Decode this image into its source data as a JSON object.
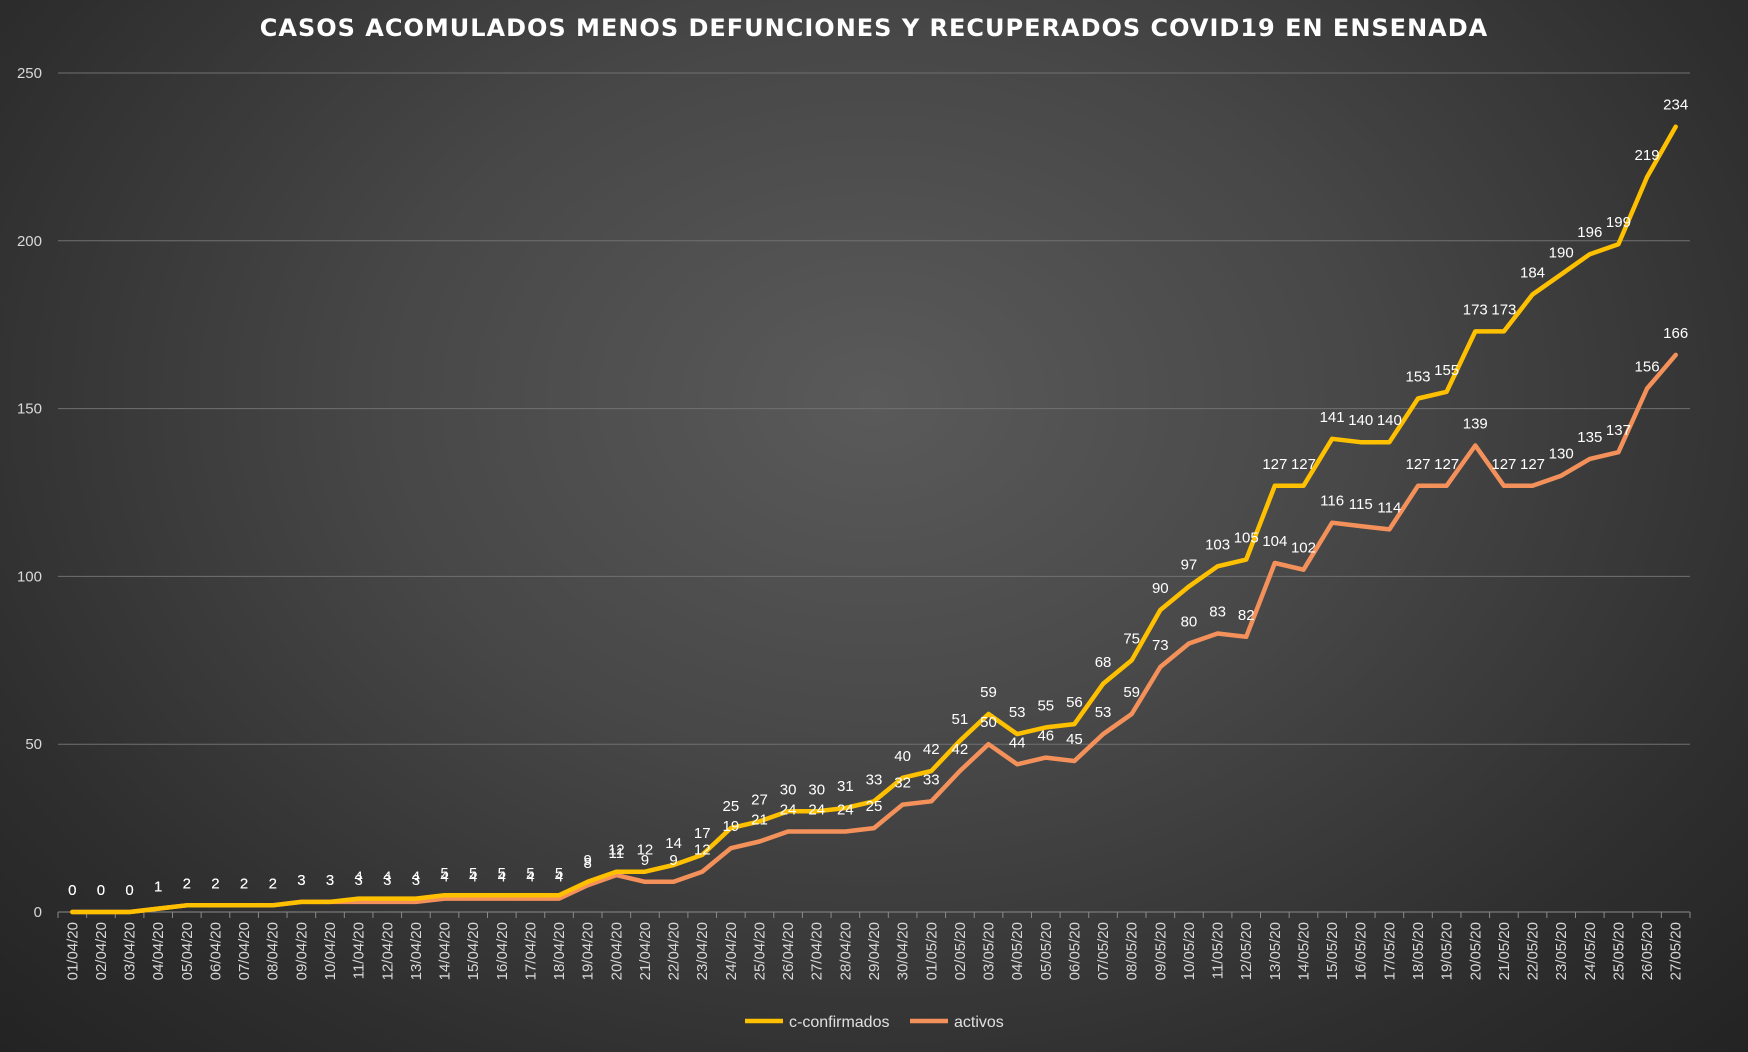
{
  "chart_data": {
    "type": "line",
    "title": "CASOS ACOMULADOS MENOS DEFUNCIONES Y RECUPERADOS COVID19 EN ENSENADA",
    "xlabel": "",
    "ylabel": "",
    "ylim": [
      0,
      250
    ],
    "yticks": [
      0,
      50,
      100,
      150,
      200,
      250
    ],
    "grid": "horizontal",
    "legend_position": "bottom",
    "categories": [
      "01/04/20",
      "02/04/20",
      "03/04/20",
      "04/04/20",
      "05/04/20",
      "06/04/20",
      "07/04/20",
      "08/04/20",
      "09/04/20",
      "10/04/20",
      "11/04/20",
      "12/04/20",
      "13/04/20",
      "14/04/20",
      "15/04/20",
      "16/04/20",
      "17/04/20",
      "18/04/20",
      "19/04/20",
      "20/04/20",
      "21/04/20",
      "22/04/20",
      "23/04/20",
      "24/04/20",
      "25/04/20",
      "26/04/20",
      "27/04/20",
      "28/04/20",
      "29/04/20",
      "30/04/20",
      "01/05/20",
      "02/05/20",
      "03/05/20",
      "04/05/20",
      "05/05/20",
      "06/05/20",
      "07/05/20",
      "08/05/20",
      "09/05/20",
      "10/05/20",
      "11/05/20",
      "12/05/20",
      "13/05/20",
      "14/05/20",
      "15/05/20",
      "16/05/20",
      "17/05/20",
      "18/05/20",
      "19/05/20",
      "20/05/20",
      "21/05/20",
      "22/05/20",
      "23/05/20",
      "24/05/20",
      "25/05/20",
      "26/05/20",
      "27/05/20"
    ],
    "series": [
      {
        "name": "c-confirmados",
        "color": "#FFC000",
        "values": [
          0,
          0,
          0,
          1,
          2,
          2,
          2,
          2,
          3,
          3,
          4,
          4,
          4,
          5,
          5,
          5,
          5,
          5,
          9,
          12,
          12,
          14,
          17,
          25,
          27,
          30,
          30,
          31,
          33,
          40,
          42,
          51,
          59,
          53,
          55,
          56,
          68,
          75,
          90,
          97,
          103,
          105,
          127,
          127,
          141,
          140,
          140,
          153,
          155,
          173,
          173,
          184,
          190,
          196,
          199,
          219,
          234
        ]
      },
      {
        "name": "activos",
        "color": "#F4915A",
        "values": [
          0,
          0,
          0,
          1,
          2,
          2,
          2,
          2,
          3,
          3,
          3,
          3,
          3,
          4,
          4,
          4,
          4,
          4,
          8,
          11,
          9,
          9,
          12,
          19,
          21,
          24,
          24,
          24,
          25,
          32,
          33,
          42,
          50,
          44,
          46,
          45,
          53,
          59,
          73,
          80,
          83,
          82,
          104,
          102,
          116,
          115,
          114,
          127,
          127,
          139,
          127,
          127,
          130,
          135,
          137,
          156,
          166
        ]
      }
    ]
  }
}
